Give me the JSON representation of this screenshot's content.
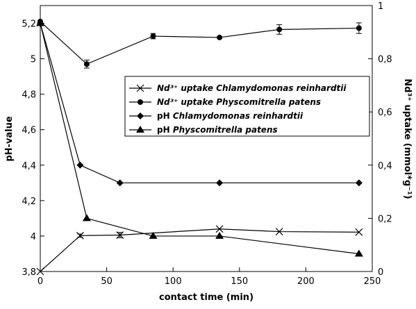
{
  "chart_data": {
    "type": "line",
    "xlabel": "contact time (min)",
    "ylabel_left": "pH-value",
    "ylabel_right": "Nd³⁺ uptake (mmol*g⁻¹)",
    "xlim": [
      0,
      250
    ],
    "ylim_left": [
      3.8,
      5.3
    ],
    "ylim_right": [
      0,
      1
    ],
    "x_ticks": [
      "0",
      "50",
      "100",
      "150",
      "200",
      "250"
    ],
    "y_left_ticks": [
      "3,8",
      "4",
      "4,2",
      "4,4",
      "4,6",
      "4,8",
      "5",
      "5,2"
    ],
    "y_right_ticks": [
      "0",
      "0,2",
      "0,4",
      "0,6",
      "0,8",
      "1"
    ],
    "grid": false,
    "legend_position": "center-right",
    "series": [
      {
        "name_prefix": "Nd³⁺ uptake ",
        "name_species": "Chlamydomonas reinhardtii",
        "name": "Nd³⁺ uptake Chlamydomonas reinhardtii",
        "axis": "right",
        "marker": "x",
        "x": [
          0,
          30,
          60,
          135,
          180,
          240
        ],
        "y": [
          0,
          0.135,
          0.137,
          0.16,
          0.15,
          0.148
        ],
        "err": [
          0,
          0.006,
          0.01,
          0,
          0,
          0
        ]
      },
      {
        "name_prefix": "Nd³⁺ uptake ",
        "name_species": "Physcomitrella patens",
        "name": "Nd³⁺ uptake Physcomitrella patens",
        "axis": "right",
        "marker": "circle",
        "x": [
          0,
          35,
          85,
          135,
          180,
          240
        ],
        "y": [
          0.94,
          0.78,
          0.885,
          0.88,
          0.91,
          0.915
        ],
        "err": [
          0,
          0.015,
          0.01,
          0,
          0.018,
          0.02
        ]
      },
      {
        "name_prefix": "pH ",
        "name_species": "Chlamydomonas reinhardtii",
        "name": "pH Chlamydomonas reinhardtii",
        "axis": "left",
        "marker": "diamond",
        "x": [
          0,
          30,
          60,
          135,
          240
        ],
        "y": [
          5.2,
          4.4,
          4.3,
          4.3,
          4.3
        ]
      },
      {
        "name_prefix": "pH ",
        "name_species": "Physcomitrella patens",
        "name": "pH Physcomitrella patens",
        "axis": "left",
        "marker": "triangle",
        "x": [
          0,
          35,
          85,
          135,
          240
        ],
        "y": [
          5.2,
          4.1,
          4.0,
          4.0,
          3.9
        ]
      }
    ]
  }
}
